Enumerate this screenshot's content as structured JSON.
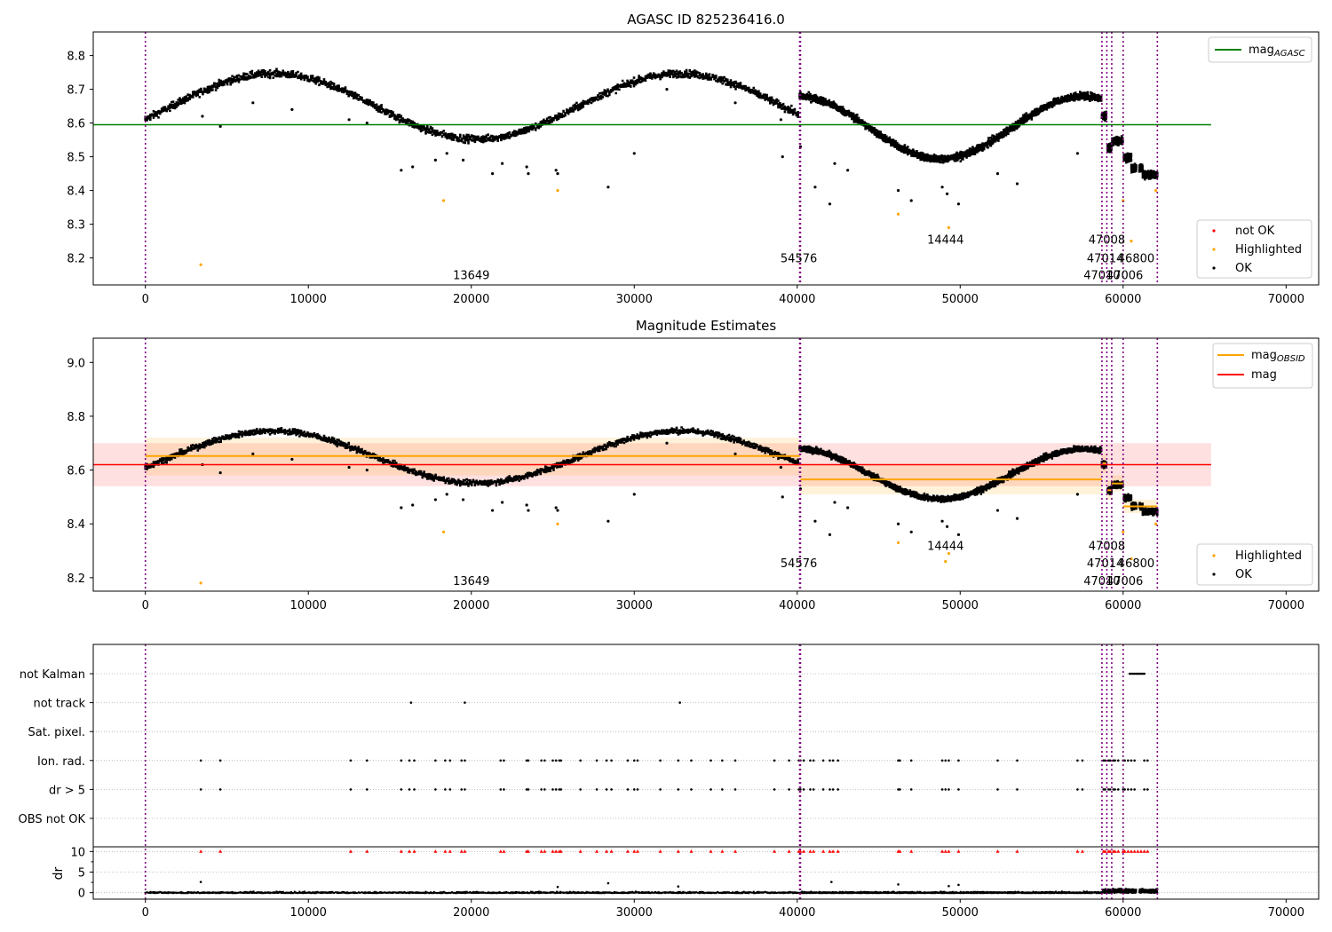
{
  "chart_data": [
    {
      "type": "scatter",
      "title": "AGASC ID 825236416.0",
      "xlim": [
        -3200,
        72000
      ],
      "ylim": [
        8.12,
        8.87
      ],
      "xticks": [
        0,
        10000,
        20000,
        30000,
        40000,
        50000,
        60000,
        70000
      ],
      "yticks": [
        8.2,
        8.3,
        8.4,
        8.5,
        8.6,
        8.7,
        8.8
      ],
      "grid": false,
      "legend_top": {
        "position": "top-right",
        "entries": [
          {
            "label": "mag",
            "sub": "AGASC",
            "color": "#008000"
          }
        ]
      },
      "legend_bottom": {
        "position": "bottom-right",
        "entries": [
          {
            "label": "not OK",
            "color": "#ff0000"
          },
          {
            "label": "Highlighted",
            "color": "#ffa500"
          },
          {
            "label": "OK",
            "color": "#000000"
          }
        ]
      },
      "series": [
        {
          "name": "mag",
          "type": "hline",
          "y": 8.595,
          "x_range": [
            -3200,
            65400
          ],
          "color": "#008000"
        }
      ],
      "highlighted_points": [
        [
          3400,
          8.18
        ],
        [
          18300,
          8.37
        ],
        [
          25300,
          8.4
        ],
        [
          46200,
          8.33
        ],
        [
          49300,
          8.29
        ],
        [
          60000,
          8.37
        ],
        [
          60500,
          8.25
        ],
        [
          62000,
          8.4
        ]
      ],
      "ok_outliers": [
        [
          3500,
          8.62
        ],
        [
          4600,
          8.59
        ],
        [
          6600,
          8.66
        ],
        [
          9000,
          8.64
        ],
        [
          12500,
          8.61
        ],
        [
          13600,
          8.6
        ],
        [
          15700,
          8.46
        ],
        [
          16400,
          8.47
        ],
        [
          17800,
          8.49
        ],
        [
          18500,
          8.51
        ],
        [
          19500,
          8.49
        ],
        [
          21300,
          8.45
        ],
        [
          21900,
          8.48
        ],
        [
          23400,
          8.47
        ],
        [
          23500,
          8.45
        ],
        [
          25300,
          8.45
        ],
        [
          25200,
          8.46
        ],
        [
          28400,
          8.41
        ],
        [
          30000,
          8.51
        ],
        [
          32000,
          8.7
        ],
        [
          36200,
          8.66
        ],
        [
          39000,
          8.61
        ],
        [
          39100,
          8.5
        ],
        [
          40200,
          8.53
        ],
        [
          41100,
          8.41
        ],
        [
          42000,
          8.36
        ],
        [
          42300,
          8.48
        ],
        [
          43100,
          8.46
        ],
        [
          46200,
          8.4
        ],
        [
          47000,
          8.37
        ],
        [
          48900,
          8.41
        ],
        [
          49200,
          8.39
        ],
        [
          49900,
          8.36
        ],
        [
          52300,
          8.45
        ],
        [
          53500,
          8.42
        ],
        [
          57200,
          8.51
        ]
      ],
      "obsid_labels": [
        {
          "text": "13649",
          "x": 20000,
          "y": 8.15
        },
        {
          "text": "54576",
          "x": 40100,
          "y": 8.2
        },
        {
          "text": "14444",
          "x": 49100,
          "y": 8.255
        },
        {
          "text": "47008",
          "x": 59000,
          "y": 8.255
        },
        {
          "text": "47014",
          "x": 58900,
          "y": 8.2
        },
        {
          "text": "46800",
          "x": 60800,
          "y": 8.2
        },
        {
          "text": "47010",
          "x": 58700,
          "y": 8.15
        },
        {
          "text": "47006",
          "x": 60100,
          "y": 8.15
        }
      ],
      "obs_boundaries": [
        0,
        40150,
        40200,
        58700,
        59000,
        59300,
        60000,
        62100
      ]
    },
    {
      "type": "scatter",
      "title": "Magnitude Estimates",
      "xlim": [
        -3200,
        72000
      ],
      "ylim": [
        8.15,
        9.09
      ],
      "xticks": [
        0,
        10000,
        20000,
        30000,
        40000,
        50000,
        60000,
        70000
      ],
      "yticks": [
        8.2,
        8.4,
        8.6,
        8.8,
        9.0
      ],
      "grid": false,
      "legend_top": {
        "position": "top-right",
        "entries": [
          {
            "label": "mag",
            "sub": "OBSID",
            "color": "#ffa500"
          },
          {
            "label": "mag",
            "sub": "",
            "color": "#ff0000"
          }
        ]
      },
      "legend_bottom": {
        "position": "bottom-right",
        "entries": [
          {
            "label": "Highlighted",
            "color": "#ffa500"
          },
          {
            "label": "OK",
            "color": "#000000"
          }
        ]
      },
      "mag_band": {
        "y": 8.62,
        "lo": 8.54,
        "hi": 8.7,
        "x_range": [
          -3200,
          65400
        ],
        "color": "#ff0000"
      },
      "obsid_segments": [
        {
          "x0": 0,
          "x1": 40150,
          "y": 8.652,
          "lo": 8.58,
          "hi": 8.72
        },
        {
          "x0": 40200,
          "x1": 58700,
          "y": 8.565,
          "lo": 8.51,
          "hi": 8.62
        },
        {
          "x0": 58700,
          "x1": 59000,
          "y": 8.625,
          "lo": 8.59,
          "hi": 8.66
        },
        {
          "x0": 59000,
          "x1": 59300,
          "y": 8.525,
          "lo": 8.49,
          "hi": 8.56
        },
        {
          "x0": 59300,
          "x1": 60000,
          "y": 8.55,
          "lo": 8.52,
          "hi": 8.58
        },
        {
          "x0": 60000,
          "x1": 62100,
          "y": 8.465,
          "lo": 8.44,
          "hi": 8.49
        }
      ],
      "highlighted_points": [
        [
          3400,
          8.18
        ],
        [
          18300,
          8.37
        ],
        [
          25300,
          8.4
        ],
        [
          46200,
          8.33
        ],
        [
          49100,
          8.26
        ],
        [
          49300,
          8.29
        ],
        [
          60000,
          8.37
        ],
        [
          60500,
          8.27
        ],
        [
          62000,
          8.4
        ]
      ],
      "obsid_labels": [
        {
          "text": "13649",
          "x": 20000,
          "y": 8.19
        },
        {
          "text": "54576",
          "x": 40100,
          "y": 8.255
        },
        {
          "text": "14444",
          "x": 49100,
          "y": 8.32
        },
        {
          "text": "47008",
          "x": 59000,
          "y": 8.32
        },
        {
          "text": "47014",
          "x": 58900,
          "y": 8.255
        },
        {
          "text": "46800",
          "x": 60800,
          "y": 8.255
        },
        {
          "text": "47010",
          "x": 58700,
          "y": 8.19
        },
        {
          "text": "47006",
          "x": 60100,
          "y": 8.19
        }
      ]
    },
    {
      "type": "scatter",
      "title": "",
      "flag_rows": [
        "not Kalman",
        "not track",
        "Sat. pixel.",
        "Ion. rad.",
        "dr > 5",
        "OBS not OK"
      ],
      "xlim": [
        -3200,
        72000
      ],
      "xticks": [
        0,
        10000,
        20000,
        30000,
        40000,
        50000,
        60000,
        70000
      ],
      "ylabel_dr": "dr",
      "dr_yticks": [
        0,
        5,
        10
      ],
      "dr_ylim": [
        -0.5,
        10.5
      ],
      "flag_events": {
        "not Kalman": [
          60400,
          60500,
          60600,
          60700,
          60800,
          60900,
          61000,
          61100,
          61200,
          61300
        ],
        "not track": [
          16300,
          19600,
          32800
        ],
        "Sat. pixel.": [],
        "Ion. rad.": [
          3400,
          4600,
          12600,
          13600,
          15700,
          16200,
          16500,
          17800,
          18400,
          18700,
          19400,
          19600,
          21800,
          22000,
          23400,
          23500,
          24300,
          24500,
          25000,
          25200,
          25400,
          25500,
          26700,
          27700,
          28300,
          28600,
          29600,
          30000,
          30200,
          31600,
          32700,
          33500,
          34700,
          35400,
          36200,
          38600,
          39500,
          40100,
          40200,
          40400,
          40800,
          41000,
          41600,
          42000,
          42200,
          42500,
          46200,
          46300,
          47000,
          48900,
          49100,
          49300,
          49900,
          52300,
          53500,
          57200,
          57500,
          58800,
          58900,
          59100,
          59200,
          59400,
          59500,
          59700,
          60000,
          60100,
          60300,
          60500,
          60700,
          61300,
          61500
        ],
        "dr > 5": [
          3400,
          4600,
          12600,
          13600,
          15700,
          16200,
          16500,
          17800,
          18400,
          18700,
          19400,
          19600,
          21800,
          22000,
          23400,
          23500,
          24300,
          24500,
          25000,
          25200,
          25400,
          25500,
          26700,
          27700,
          28300,
          28600,
          29600,
          30000,
          30200,
          31600,
          32700,
          33500,
          34700,
          35400,
          36200,
          38600,
          39500,
          40100,
          40200,
          40400,
          40800,
          41000,
          41600,
          42000,
          42200,
          42500,
          46200,
          46300,
          47000,
          48900,
          49100,
          49300,
          49900,
          52300,
          53500,
          57200,
          57500,
          58800,
          58900,
          59100,
          59200,
          59400,
          59500,
          59700,
          60000,
          60100,
          60300,
          60500,
          60700,
          61300,
          61500
        ],
        "OBS not OK": []
      },
      "dr_capped_points": [
        3400,
        4600,
        12600,
        13600,
        15700,
        16200,
        16500,
        17800,
        18400,
        18700,
        19400,
        19600,
        21800,
        22000,
        23400,
        23500,
        24300,
        24500,
        25000,
        25200,
        25400,
        25500,
        26700,
        27700,
        28300,
        28600,
        29600,
        30000,
        30200,
        31600,
        32700,
        33500,
        34700,
        35400,
        36200,
        38600,
        39500,
        40100,
        40200,
        40400,
        40800,
        41000,
        41600,
        42000,
        42200,
        42500,
        46200,
        46300,
        47000,
        48900,
        49100,
        49300,
        49900,
        52300,
        53500,
        57200,
        57500,
        58800,
        58900,
        59100,
        59200,
        59400,
        59500,
        59700,
        60000,
        60100,
        60300,
        60500,
        60700,
        60900,
        61100,
        61300,
        61500
      ],
      "dr_outliers": [
        [
          3400,
          2.6
        ],
        [
          25300,
          1.4
        ],
        [
          28400,
          2.3
        ],
        [
          32700,
          1.5
        ],
        [
          42100,
          2.6
        ],
        [
          46200,
          2.0
        ],
        [
          49300,
          1.6
        ],
        [
          49900,
          1.9
        ]
      ]
    }
  ]
}
